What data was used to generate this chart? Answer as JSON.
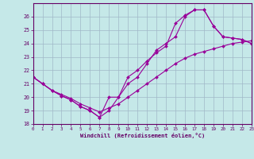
{
  "xlabel": "Windchill (Refroidissement éolien,°C)",
  "bg_color": "#c5e8e8",
  "grid_color": "#a0b8c8",
  "line_color": "#990099",
  "tick_color": "#660066",
  "xlim": [
    0,
    23
  ],
  "ylim": [
    18,
    27
  ],
  "yticks": [
    18,
    19,
    20,
    21,
    22,
    23,
    24,
    25,
    26
  ],
  "xticks": [
    0,
    1,
    2,
    3,
    4,
    5,
    6,
    7,
    8,
    9,
    10,
    11,
    12,
    13,
    14,
    15,
    16,
    17,
    18,
    19,
    20,
    21,
    22,
    23
  ],
  "line1_x": [
    0,
    1,
    2,
    3,
    4,
    5,
    6,
    7,
    8,
    9,
    10,
    11,
    12,
    13,
    14,
    15,
    16,
    17,
    18,
    19,
    20,
    21,
    22,
    23
  ],
  "line1_y": [
    21.5,
    21.0,
    20.5,
    20.2,
    19.9,
    19.5,
    19.2,
    18.9,
    19.2,
    19.5,
    20.0,
    20.5,
    21.0,
    21.5,
    22.0,
    22.5,
    22.9,
    23.2,
    23.4,
    23.6,
    23.8,
    24.0,
    24.1,
    24.2
  ],
  "line2_x": [
    0,
    1,
    2,
    3,
    4,
    5,
    6,
    7,
    8,
    9,
    10,
    11,
    12,
    13,
    14,
    15,
    16,
    17,
    18,
    19,
    20,
    21,
    22,
    23
  ],
  "line2_y": [
    21.5,
    21.0,
    20.5,
    20.1,
    19.8,
    19.3,
    19.0,
    18.5,
    19.0,
    20.0,
    21.5,
    22.0,
    22.7,
    23.3,
    23.8,
    25.5,
    26.1,
    26.5,
    26.5,
    25.3,
    24.5,
    24.4,
    24.3,
    24.0
  ],
  "line3_x": [
    0,
    1,
    2,
    3,
    4,
    5,
    6,
    7,
    8,
    9,
    10,
    11,
    12,
    13,
    14,
    15,
    16,
    17,
    18,
    19,
    20,
    21,
    22,
    23
  ],
  "line3_y": [
    21.5,
    21.0,
    20.5,
    20.1,
    19.8,
    19.3,
    19.0,
    18.5,
    20.0,
    20.0,
    21.0,
    21.5,
    22.5,
    23.5,
    24.0,
    24.5,
    26.0,
    26.5,
    26.5,
    25.3,
    24.5,
    24.4,
    24.3,
    24.0
  ]
}
